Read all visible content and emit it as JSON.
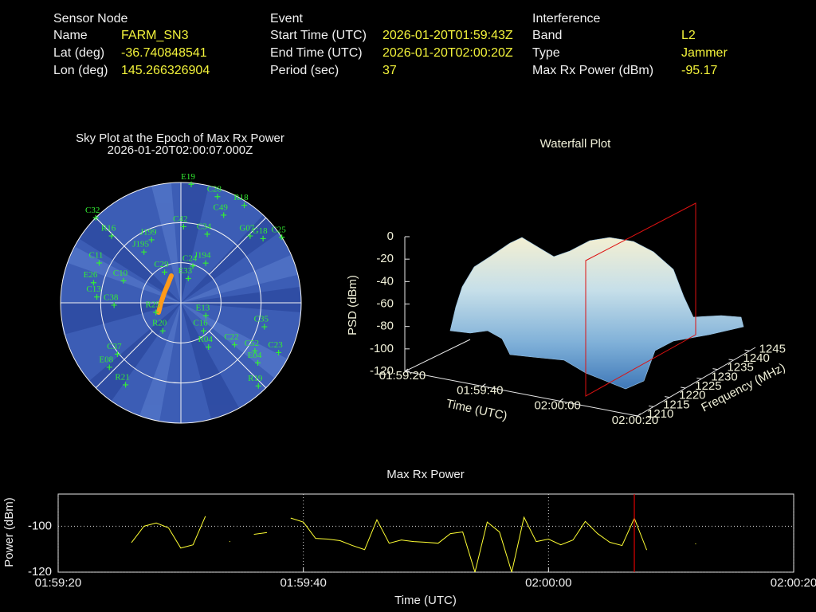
{
  "header": {
    "columns": [
      {
        "title": "Sensor Node",
        "rows": [
          [
            "Name",
            "FARM_SN3"
          ],
          [
            "Lat (deg)",
            "-36.740848541"
          ],
          [
            "Lon (deg)",
            "145.266326904"
          ]
        ]
      },
      {
        "title": "Event",
        "rows": [
          [
            "Start Time (UTC)",
            "2026-01-20T01:59:43Z"
          ],
          [
            "End Time (UTC)",
            "2026-01-20T02:00:20Z"
          ],
          [
            "Period (sec)",
            "37"
          ]
        ]
      },
      {
        "title": "Interference",
        "rows": [
          [
            "Band",
            "L2"
          ],
          [
            "Type",
            "Jammer"
          ],
          [
            "Max Rx Power (dBm)",
            "-95.17"
          ]
        ]
      }
    ]
  },
  "sky_plot": {
    "title": "Sky Plot at the Epoch of Max Rx Power",
    "subtitle": "2026-01-20T02:00:07.000Z",
    "ellim": [
      0,
      90
    ],
    "elticks": [
      0,
      30,
      60
    ],
    "satellites": [
      {
        "label": "E19",
        "az": 5,
        "el": 1
      },
      {
        "label": "C28",
        "az": 19,
        "el": 6
      },
      {
        "label": "C49",
        "az": 26,
        "el": 17
      },
      {
        "label": "R18",
        "az": 33,
        "el": 3
      },
      {
        "label": "C25",
        "az": 57,
        "el": 0
      },
      {
        "label": "G18",
        "az": 52,
        "el": 12
      },
      {
        "label": "G07",
        "az": 46,
        "el": 18
      },
      {
        "label": "C32",
        "az": 315,
        "el": 0
      },
      {
        "label": "R16",
        "az": 314,
        "el": 18
      },
      {
        "label": "J199",
        "az": 335,
        "el": 38
      },
      {
        "label": "J195",
        "az": 324,
        "el": 43
      },
      {
        "label": "C42",
        "az": 2,
        "el": 33
      },
      {
        "label": "C34",
        "az": 21,
        "el": 35
      },
      {
        "label": "C24",
        "az": 18,
        "el": 61
      },
      {
        "label": "J194",
        "az": 32,
        "el": 55
      },
      {
        "label": "C29",
        "az": 332,
        "el": 64
      },
      {
        "label": "E33",
        "az": 17,
        "el": 71
      },
      {
        "label": "C10",
        "az": 291,
        "el": 44
      },
      {
        "label": "E26",
        "az": 283,
        "el": 23
      },
      {
        "label": "C13",
        "az": 274,
        "el": 27
      },
      {
        "label": "C38",
        "az": 268,
        "el": 40
      },
      {
        "label": "C11",
        "az": 296,
        "el": 22
      },
      {
        "label": "R25",
        "az": 249,
        "el": 70
      },
      {
        "label": "R20",
        "az": 213,
        "el": 65
      },
      {
        "label": "E13",
        "az": 117,
        "el": 69
      },
      {
        "label": "C16",
        "az": 141,
        "el": 63
      },
      {
        "label": "R04",
        "az": 148,
        "el": 51
      },
      {
        "label": "C35",
        "az": 106,
        "el": 25
      },
      {
        "label": "C22",
        "az": 128,
        "el": 39
      },
      {
        "label": "C52",
        "az": 123,
        "el": 24
      },
      {
        "label": "C23",
        "az": 117,
        "el": 8
      },
      {
        "label": "E04",
        "az": 128,
        "el": 17
      },
      {
        "label": "R19",
        "az": 137,
        "el": 5
      },
      {
        "label": "C37",
        "az": 231,
        "el": 29
      },
      {
        "label": "E08",
        "az": 228,
        "el": 18
      },
      {
        "label": "R21",
        "az": 214,
        "el": 16
      }
    ]
  },
  "waterfall": {
    "title": "Waterfall Plot",
    "z_label": "PSD (dBm)",
    "x_label": "Time (UTC)",
    "y_label": "Frequency (MHz)",
    "zlim": [
      -120,
      0
    ],
    "zticks": [
      0,
      -20,
      -40,
      -60,
      -80,
      -100,
      -120
    ],
    "time_ticks": [
      "01:59:20",
      "01:59:40",
      "02:00:00",
      "02:00:20"
    ],
    "freqlim": [
      1210,
      1245
    ],
    "freq_ticks": [
      1210,
      1215,
      1220,
      1225,
      1230,
      1235,
      1240,
      1245
    ]
  },
  "chart_data": {
    "type": "line",
    "title": "Max Rx Power",
    "x_label": "Time (UTC)",
    "y_label": "Power (dBm)",
    "x": [
      "01:59:26",
      "01:59:27",
      "01:59:28",
      "01:59:29",
      "01:59:30",
      "01:59:31",
      "01:59:32",
      "01:59:33",
      "01:59:34",
      "01:59:35",
      "01:59:36",
      "01:59:37",
      "01:59:38",
      "01:59:39",
      "01:59:40",
      "01:59:41",
      "01:59:42",
      "01:59:43",
      "01:59:44",
      "01:59:45",
      "01:59:46",
      "01:59:47",
      "01:59:48",
      "01:59:49",
      "01:59:50",
      "01:59:51",
      "01:59:52",
      "01:59:53",
      "01:59:54",
      "01:59:55",
      "01:59:56",
      "01:59:57",
      "01:59:58",
      "01:59:59",
      "02:00:00",
      "02:00:01",
      "02:00:02",
      "02:00:03",
      "02:00:04",
      "02:00:05",
      "02:00:06",
      "02:00:07",
      "02:00:08",
      "02:00:09",
      "02:00:10",
      "02:00:11",
      "02:00:12"
    ],
    "series": [
      {
        "name": "Max Rx Power",
        "color": "#ffff33",
        "values": [
          -107.0,
          -100,
          -98.6,
          -100.7,
          -109.5,
          -108.1,
          -95.8,
          null,
          -106.7,
          null,
          -103.5,
          -102.8,
          null,
          -96.5,
          -98.2,
          -105.3,
          -105.6,
          -106.3,
          -108.4,
          -110.2,
          -97.2,
          -107.4,
          -106.0,
          -106.7,
          -107.0,
          -107.4,
          -103.2,
          -102.5,
          -120,
          -98.2,
          -102.5,
          -120,
          -96.1,
          -106.7,
          -105.6,
          -108.1,
          -106.0,
          -97.9,
          -103.2,
          -107.0,
          -108.4,
          -96.5,
          -110.2,
          null,
          null,
          null,
          -107.7
        ]
      }
    ],
    "xlim": [
      "01:59:20",
      "02:00:20"
    ],
    "xticks": [
      "01:59:20",
      "01:59:40",
      "02:00:00",
      "02:00:20"
    ],
    "ylim": [
      -120,
      -86
    ],
    "yticks": [
      -120,
      -100
    ],
    "grid": true,
    "marker_x": "02:00:07",
    "marker_color": "#dd0000"
  }
}
